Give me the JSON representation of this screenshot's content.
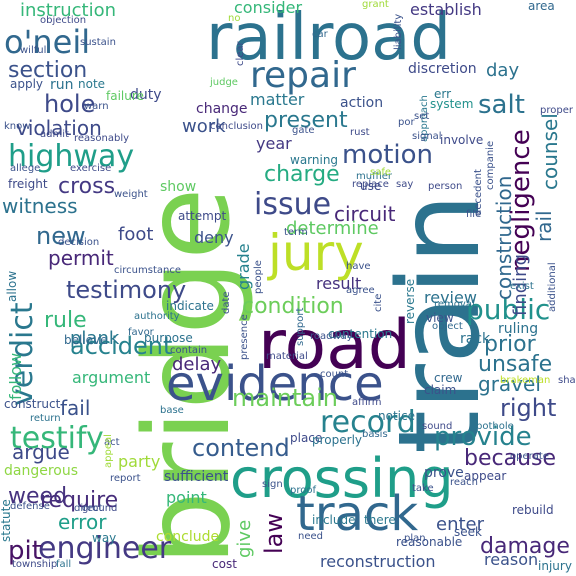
{
  "words": [
    {
      "text": "bridge",
      "color": "#7ad151"
    },
    {
      "text": "train",
      "color": "#2c728e"
    },
    {
      "text": "railroad",
      "color": "#2c728e"
    },
    {
      "text": "road",
      "color": "#440154"
    },
    {
      "text": "crossing",
      "color": "#1f9e89"
    },
    {
      "text": "evidence",
      "color": "#3b528b"
    },
    {
      "text": "track",
      "color": "#31688e"
    },
    {
      "text": "jury",
      "color": "#bddf26"
    },
    {
      "text": "repair",
      "color": "#31688e"
    },
    {
      "text": "issue",
      "color": "#3e4a89"
    },
    {
      "text": "highway",
      "color": "#1f9e89"
    },
    {
      "text": "testify",
      "color": "#35b779"
    },
    {
      "text": "engineer",
      "color": "#443983"
    },
    {
      "text": "o'neil",
      "color": "#31688e"
    },
    {
      "text": "verdict",
      "color": "#2a788e"
    },
    {
      "text": "motion",
      "color": "#3b528b"
    },
    {
      "text": "contend",
      "color": "#365c8d"
    },
    {
      "text": "record",
      "color": "#26828e"
    },
    {
      "text": "testimony",
      "color": "#3e4a89"
    },
    {
      "text": "condition",
      "color": "#6ccd5a"
    },
    {
      "text": "maintain",
      "color": "#6ccd5a"
    },
    {
      "text": "public",
      "color": "#21918c"
    },
    {
      "text": "negligence",
      "color": "#440154"
    },
    {
      "text": "construction",
      "color": "#31688e"
    },
    {
      "text": "accident",
      "color": "#26828e"
    },
    {
      "text": "provide",
      "color": "#26828e"
    },
    {
      "text": "damage",
      "color": "#482878"
    },
    {
      "text": "hole",
      "color": "#3e4a89"
    },
    {
      "text": "salt",
      "color": "#2c728e"
    },
    {
      "text": "new",
      "color": "#31688e"
    },
    {
      "text": "cross",
      "color": "#443983"
    },
    {
      "text": "rule",
      "color": "#35b779"
    },
    {
      "text": "require",
      "color": "#472d7b"
    },
    {
      "text": "pit",
      "color": "#471365"
    },
    {
      "text": "law",
      "color": "#440154"
    },
    {
      "text": "right",
      "color": "#3e4a89"
    },
    {
      "text": "because",
      "color": "#482878"
    },
    {
      "text": "prior",
      "color": "#2c728e"
    },
    {
      "text": "unsafe",
      "color": "#2c728e"
    },
    {
      "text": "present",
      "color": "#2a788e"
    },
    {
      "text": "charge",
      "color": "#25ab82"
    },
    {
      "text": "section",
      "color": "#3b528b"
    },
    {
      "text": "violation",
      "color": "#3e4a89"
    },
    {
      "text": "permit",
      "color": "#482878"
    },
    {
      "text": "argue",
      "color": "#3e4a89"
    },
    {
      "text": "fail",
      "color": "#3b528b"
    },
    {
      "text": "error",
      "color": "#1f9e89"
    },
    {
      "text": "witness",
      "color": "#2c728e"
    },
    {
      "text": "circuit",
      "color": "#482878"
    },
    {
      "text": "determine",
      "color": "#5ec962"
    },
    {
      "text": "counsel",
      "color": "#2a788e"
    },
    {
      "text": "rail",
      "color": "#31688e"
    },
    {
      "text": "gravel",
      "color": "#2c728e"
    },
    {
      "text": "finding",
      "color": "#3e4a89"
    },
    {
      "text": "foot",
      "color": "#3e4a89"
    },
    {
      "text": "day",
      "color": "#2c728e"
    },
    {
      "text": "work",
      "color": "#3b528b"
    },
    {
      "text": "instruction",
      "color": "#35b779"
    },
    {
      "text": "consider",
      "color": "#35b779"
    },
    {
      "text": "establish",
      "color": "#443983"
    },
    {
      "text": "weed",
      "color": "#46327e"
    },
    {
      "text": "argument",
      "color": "#35b779"
    },
    {
      "text": "plank",
      "color": "#2a788e"
    },
    {
      "text": "delay",
      "color": "#482878"
    },
    {
      "text": "grade",
      "color": "#26828e"
    },
    {
      "text": "deny",
      "color": "#3b528b"
    },
    {
      "text": "result",
      "color": "#46327e"
    },
    {
      "text": "review",
      "color": "#2c728e"
    },
    {
      "text": "party",
      "color": "#a0da39"
    },
    {
      "text": "enter",
      "color": "#3b528b"
    },
    {
      "text": "year",
      "color": "#443983"
    },
    {
      "text": "matter",
      "color": "#2a788e"
    },
    {
      "text": "show",
      "color": "#5ec962"
    },
    {
      "text": "give",
      "color": "#5ec962"
    },
    {
      "text": "point",
      "color": "#35b779"
    },
    {
      "text": "follow",
      "color": "#35b779"
    },
    {
      "text": "dangerous",
      "color": "#8fd744"
    },
    {
      "text": "reason",
      "color": "#3b528b"
    },
    {
      "text": "area",
      "color": "#31688e"
    },
    {
      "text": "car",
      "color": "#31688e"
    },
    {
      "text": "reconstruction",
      "color": "#3b528b"
    },
    {
      "text": "reasonable",
      "color": "#3b528b"
    },
    {
      "text": "discretion",
      "color": "#3e4a89"
    },
    {
      "text": "action",
      "color": "#3b528b"
    },
    {
      "text": "change",
      "color": "#482878"
    },
    {
      "text": "duty",
      "color": "#3e4a89"
    },
    {
      "text": "note",
      "color": "#2a788e"
    },
    {
      "text": "run",
      "color": "#2c728e"
    },
    {
      "text": "apply",
      "color": "#3b528b"
    },
    {
      "text": "rack",
      "color": "#2c728e"
    },
    {
      "text": "ruling",
      "color": "#2c728e"
    },
    {
      "text": "crew",
      "color": "#31688e"
    },
    {
      "text": "system",
      "color": "#21918c"
    },
    {
      "text": "err",
      "color": "#2a788e"
    },
    {
      "text": "warning",
      "color": "#2a788e"
    },
    {
      "text": "muffler",
      "color": "#2c728e"
    },
    {
      "text": "attempt",
      "color": "#3e4a89"
    },
    {
      "text": "indicate",
      "color": "#2c728e"
    },
    {
      "text": "purpose",
      "color": "#2c728e"
    },
    {
      "text": "believe",
      "color": "#31688e"
    },
    {
      "text": "favor",
      "color": "#31688e"
    },
    {
      "text": "contention",
      "color": "#2a788e"
    },
    {
      "text": "affirm",
      "color": "#3e4a89"
    },
    {
      "text": "claim",
      "color": "#3b528b"
    },
    {
      "text": "view",
      "color": "#3b528b"
    },
    {
      "text": "object",
      "color": "#31688e"
    },
    {
      "text": "notice",
      "color": "#2c728e"
    },
    {
      "text": "prove",
      "color": "#3b528b"
    },
    {
      "text": "appear",
      "color": "#3e4a89"
    },
    {
      "text": "rebuild",
      "color": "#3e4a89"
    },
    {
      "text": "seek",
      "color": "#3b528b"
    },
    {
      "text": "injury",
      "color": "#2c728e"
    },
    {
      "text": "include",
      "color": "#2a788e"
    },
    {
      "text": "there",
      "color": "#2a788e"
    },
    {
      "text": "conclude",
      "color": "#addc30"
    },
    {
      "text": "cost",
      "color": "#482878"
    },
    {
      "text": "township",
      "color": "#3e4a89"
    },
    {
      "text": "statute",
      "color": "#2a788e"
    },
    {
      "text": "way",
      "color": "#2a788e"
    },
    {
      "text": "ground",
      "color": "#3e4a89"
    },
    {
      "text": "defense",
      "color": "#3b528b"
    },
    {
      "text": "report",
      "color": "#3b528b"
    },
    {
      "text": "act",
      "color": "#3b528b"
    },
    {
      "text": "return",
      "color": "#2c728e"
    },
    {
      "text": "construct",
      "color": "#3b528b"
    },
    {
      "text": "sufficient",
      "color": "#3b528b"
    },
    {
      "text": "take",
      "color": "#3b528b"
    },
    {
      "text": "proof",
      "color": "#2c728e"
    },
    {
      "text": "place",
      "color": "#3e4a89"
    },
    {
      "text": "properly",
      "color": "#2c728e"
    },
    {
      "text": "basis",
      "color": "#31688e"
    },
    {
      "text": "sound",
      "color": "#3e4a89"
    },
    {
      "text": "pothole",
      "color": "#2c728e"
    },
    {
      "text": "brakeman",
      "color": "#bddf26"
    },
    {
      "text": "shall",
      "color": "#3e4a89"
    },
    {
      "text": "exist",
      "color": "#2c728e"
    },
    {
      "text": "removal",
      "color": "#2c728e"
    },
    {
      "text": "additional",
      "color": "#3b528b"
    },
    {
      "text": "material",
      "color": "#3e4a89"
    },
    {
      "text": "presence",
      "color": "#3b528b"
    },
    {
      "text": "agree",
      "color": "#3b528b"
    },
    {
      "text": "cite",
      "color": "#3b528b"
    },
    {
      "text": "roadway",
      "color": "#3b528b"
    },
    {
      "text": "support",
      "color": "#31688e"
    },
    {
      "text": "reverse",
      "color": "#2a788e"
    },
    {
      "text": "have",
      "color": "#3b528b"
    },
    {
      "text": "people",
      "color": "#3b528b"
    },
    {
      "text": "contain",
      "color": "#3b528b"
    },
    {
      "text": "authority",
      "color": "#2c728e"
    },
    {
      "text": "circumstance",
      "color": "#3b528b"
    },
    {
      "text": "decision",
      "color": "#3b528b"
    },
    {
      "text": "allow",
      "color": "#2c728e"
    },
    {
      "text": "weight",
      "color": "#3b528b"
    },
    {
      "text": "freight",
      "color": "#3e4a89"
    },
    {
      "text": "allege",
      "color": "#3b528b"
    },
    {
      "text": "exercise",
      "color": "#3e4a89"
    },
    {
      "text": "admit",
      "color": "#3e4a89"
    },
    {
      "text": "reasonably",
      "color": "#3e4a89"
    },
    {
      "text": "know",
      "color": "#3b528b"
    },
    {
      "text": "warn",
      "color": "#3b528b"
    },
    {
      "text": "objection",
      "color": "#3e4a89"
    },
    {
      "text": "wilful",
      "color": "#3b528b"
    },
    {
      "text": "failure",
      "color": "#5ec962"
    },
    {
      "text": "judge",
      "color": "#5ec962"
    },
    {
      "text": "clear",
      "color": "#3e4a89"
    },
    {
      "text": "conclusion",
      "color": "#3e4a89"
    },
    {
      "text": "grant",
      "color": "#a0da39"
    },
    {
      "text": "liability",
      "color": "#3b528b"
    },
    {
      "text": "approach",
      "color": "#2a788e"
    },
    {
      "text": "set",
      "color": "#3b528b"
    },
    {
      "text": "signal",
      "color": "#3b528b"
    },
    {
      "text": "involve",
      "color": "#3e4a89"
    },
    {
      "text": "proper",
      "color": "#3e4a89"
    },
    {
      "text": "gate",
      "color": "#3b528b"
    },
    {
      "text": "rust",
      "color": "#3e4a89"
    },
    {
      "text": "replace",
      "color": "#3e4a89"
    },
    {
      "text": "safe",
      "color": "#a0da39"
    },
    {
      "text": "use",
      "color": "#3e4a89"
    },
    {
      "text": "say",
      "color": "#3e4a89"
    },
    {
      "text": "person",
      "color": "#3e4a89"
    },
    {
      "text": "decedent",
      "color": "#3b528b"
    },
    {
      "text": "companie",
      "color": "#3b528b"
    },
    {
      "text": "file",
      "color": "#3b528b"
    },
    {
      "text": "term",
      "color": "#3b528b"
    },
    {
      "text": "date",
      "color": "#3b528b"
    },
    {
      "text": "count",
      "color": "#3b528b"
    },
    {
      "text": "base",
      "color": "#2c728e"
    },
    {
      "text": "direct",
      "color": "#3b528b"
    },
    {
      "text": "sign",
      "color": "#3b528b"
    },
    {
      "text": "need",
      "color": "#3b528b"
    },
    {
      "text": "plan",
      "color": "#3b528b"
    },
    {
      "text": "reach",
      "color": "#3b528b"
    },
    {
      "text": "appeal",
      "color": "#a0da39"
    },
    {
      "text": "operate",
      "color": "#3b528b"
    },
    {
      "text": "fall",
      "color": "#2c728e"
    },
    {
      "text": "no",
      "color": "#a0da39"
    },
    {
      "text": "por",
      "color": "#3b528b"
    },
    {
      "text": "sustain",
      "color": "#3b528b"
    }
  ]
}
